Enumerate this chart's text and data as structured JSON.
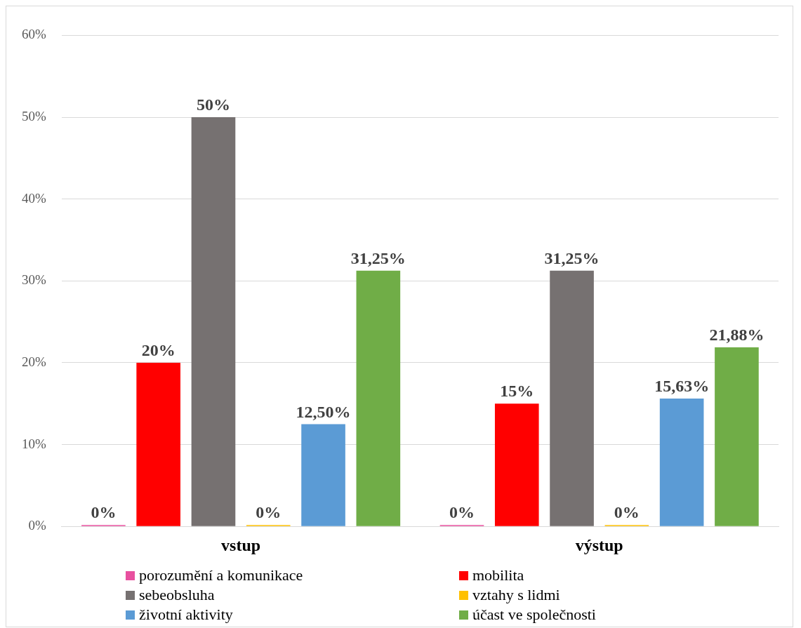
{
  "chart_data": {
    "type": "bar",
    "categories": [
      "vstup",
      "výstup"
    ],
    "series": [
      {
        "name": "porozumění a komunikace",
        "color": "#e8509f",
        "values": [
          0,
          0
        ],
        "value_labels": [
          "0%",
          "0%"
        ]
      },
      {
        "name": "mobilita",
        "color": "#ff0000",
        "values": [
          20,
          15
        ],
        "value_labels": [
          "20%",
          "15%"
        ]
      },
      {
        "name": "sebeobsluha",
        "color": "#767171",
        "values": [
          50,
          31.25
        ],
        "value_labels": [
          "50%",
          "31,25%"
        ]
      },
      {
        "name": "vztahy s lidmi",
        "color": "#ffc000",
        "values": [
          0,
          0
        ],
        "value_labels": [
          "0%",
          "0%"
        ]
      },
      {
        "name": "životní aktivity",
        "color": "#5b9bd5",
        "values": [
          12.5,
          15.63
        ],
        "value_labels": [
          "12,50%",
          "15,63%"
        ]
      },
      {
        "name": "účast ve společnosti",
        "color": "#70ad47",
        "values": [
          31.25,
          21.88
        ],
        "value_labels": [
          "31,25%",
          "21,88%"
        ]
      }
    ],
    "ylim": [
      0,
      60
    ],
    "yticks": [
      {
        "value": 0,
        "label": "0%"
      },
      {
        "value": 10,
        "label": "10%"
      },
      {
        "value": 20,
        "label": "20%"
      },
      {
        "value": 30,
        "label": "30%"
      },
      {
        "value": 40,
        "label": "40%"
      },
      {
        "value": 50,
        "label": "50%"
      },
      {
        "value": 60,
        "label": "60%"
      }
    ],
    "grid": "y",
    "legend": "bottom"
  }
}
